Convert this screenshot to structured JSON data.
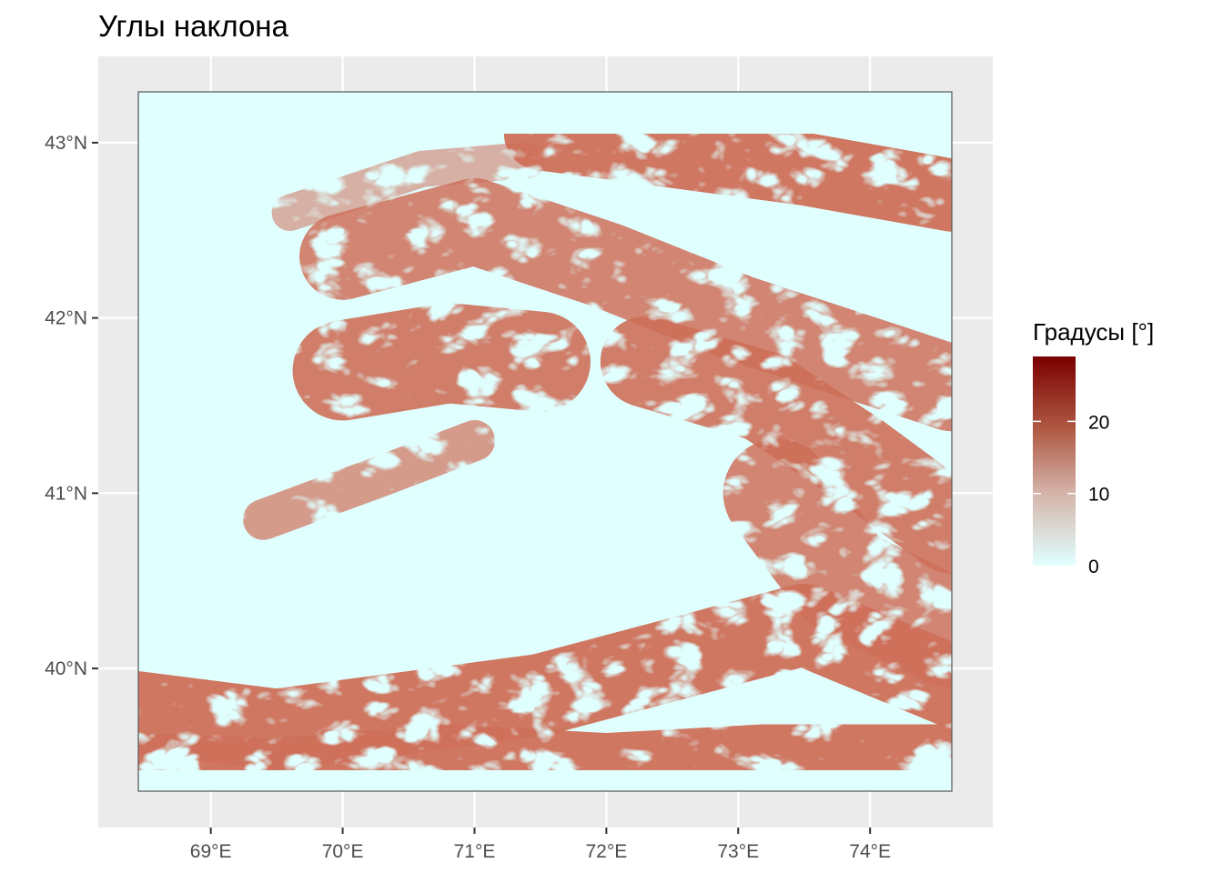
{
  "chart_data": {
    "type": "heatmap",
    "title": "Углы наклона",
    "xlabel": "",
    "ylabel": "",
    "x_ticks": [
      "69°E",
      "70°E",
      "71°E",
      "72°E",
      "73°E",
      "74°E"
    ],
    "y_ticks": [
      "43°N",
      "42°N",
      "41°N",
      "40°N"
    ],
    "x_tick_values": [
      69,
      70,
      71,
      72,
      73,
      74
    ],
    "y_tick_values": [
      43,
      42,
      41,
      40
    ],
    "xlim": [
      68.45,
      74.62
    ],
    "ylim": [
      39.3,
      43.29
    ],
    "raster_extent": {
      "lon": [
        68.45,
        74.62
      ],
      "lat": [
        39.3,
        43.29
      ]
    },
    "legend": {
      "title": "Градусы [°]",
      "breaks": [
        "20",
        "10",
        "0"
      ],
      "break_values": [
        20,
        10,
        0
      ],
      "range": [
        0,
        29
      ],
      "position": "right"
    },
    "color_scale": {
      "low": "#e0ffff",
      "mid": "#c8806e",
      "high": "#7a0000"
    },
    "panel_background": "#ebebeb",
    "grid_color": "#ffffff"
  }
}
